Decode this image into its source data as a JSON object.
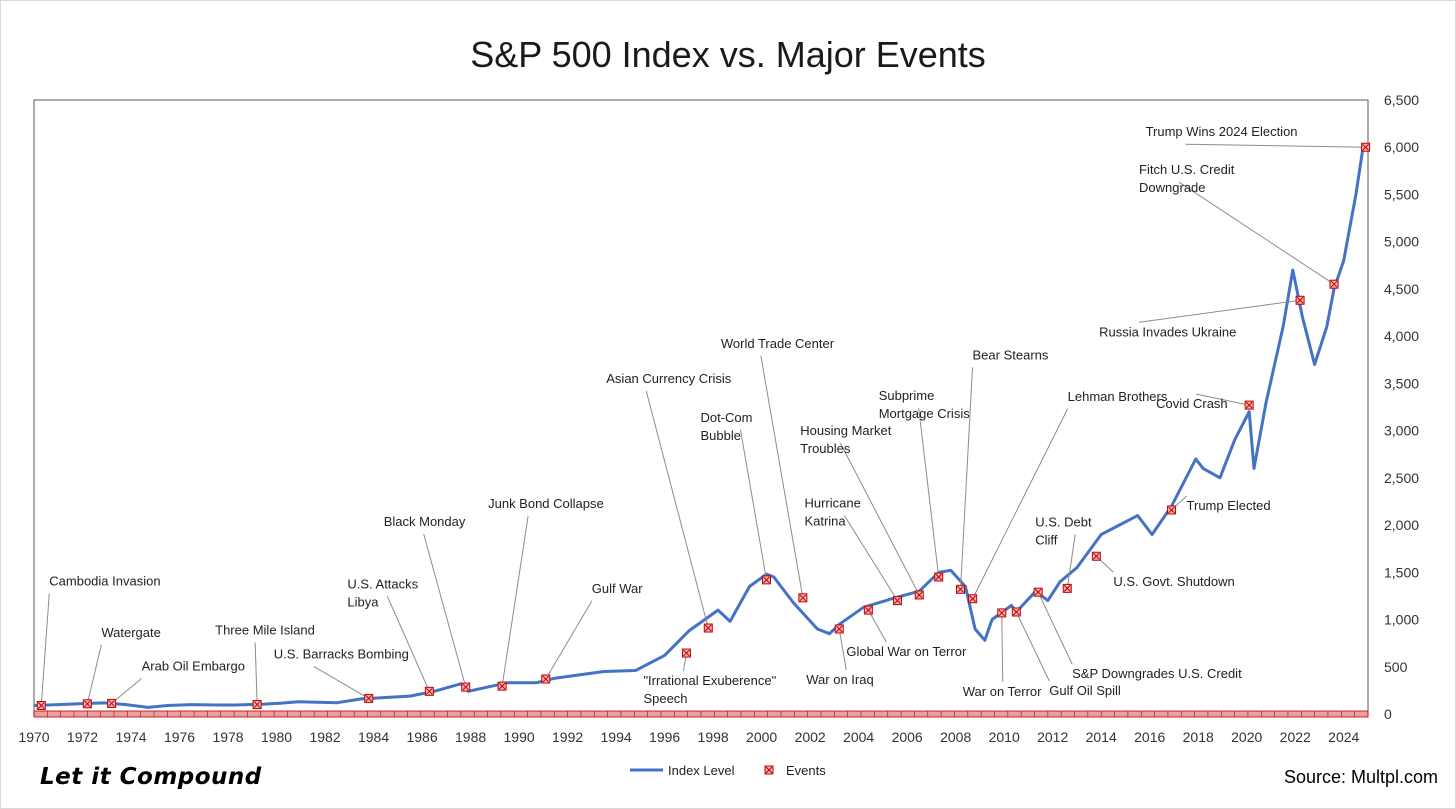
{
  "chart_data": {
    "type": "line",
    "title": "S&P 500 Index vs. Major Events",
    "xlabel": "",
    "ylabel": "",
    "xlim": [
      1970,
      2025
    ],
    "ylim": [
      0,
      6500
    ],
    "y_axis_position": "right",
    "x_ticks": [
      "1970",
      "1972",
      "1974",
      "1976",
      "1978",
      "1980",
      "1982",
      "1984",
      "1986",
      "1988",
      "1990",
      "1992",
      "1994",
      "1996",
      "1998",
      "2000",
      "2002",
      "2004",
      "2006",
      "2008",
      "2010",
      "2012",
      "2014",
      "2016",
      "2018",
      "2020",
      "2022",
      "2024"
    ],
    "y_ticks": [
      "0",
      "500",
      "1,000",
      "1,500",
      "2,000",
      "2,500",
      "3,000",
      "3,500",
      "4,000",
      "4,500",
      "5,000",
      "5,500",
      "6,000",
      "6,500"
    ],
    "grid": false,
    "legend_position": "bottom",
    "legend": [
      {
        "name": "Index Level",
        "color": "#4472c4",
        "marker": "line"
      },
      {
        "name": "Events",
        "color": "#c00000",
        "marker": "square-x"
      }
    ],
    "series": [
      {
        "name": "Index Level",
        "color": "#4472c4",
        "x": [
          1970,
          1971,
          1972,
          1972.9,
          1973.8,
          1974.7,
          1975.5,
          1976.5,
          1977.5,
          1978.3,
          1979.5,
          1980.2,
          1980.9,
          1982.5,
          1983.5,
          1985.5,
          1986.5,
          1987.6,
          1987.9,
          1989.5,
          1990.7,
          1991.5,
          1993.5,
          1994.8,
          1996,
          1997,
          1998.2,
          1998.7,
          1999.5,
          2000.2,
          2000.5,
          2001.3,
          2002.3,
          2002.8,
          2003.2,
          2004.2,
          2005.5,
          2006.5,
          2007.3,
          2007.8,
          2008.4,
          2008.8,
          2009.2,
          2009.5,
          2010.3,
          2010.5,
          2011.3,
          2011.8,
          2012.3,
          2013,
          2014,
          2015.5,
          2016.1,
          2016.9,
          2017.9,
          2018.2,
          2018.9,
          2019.5,
          2020.1,
          2020.3,
          2020.8,
          2021.5,
          2021.9,
          2022.3,
          2022.8,
          2023.3,
          2023.6,
          2024,
          2024.5,
          2024.8
        ],
        "y": [
          90,
          100,
          110,
          118,
          100,
          70,
          90,
          100,
          95,
          95,
          105,
          115,
          130,
          120,
          160,
          190,
          240,
          320,
          240,
          330,
          330,
          380,
          450,
          460,
          620,
          880,
          1100,
          980,
          1350,
          1480,
          1450,
          1180,
          900,
          850,
          950,
          1130,
          1230,
          1300,
          1500,
          1520,
          1350,
          900,
          780,
          1000,
          1150,
          1080,
          1300,
          1200,
          1400,
          1550,
          1900,
          2100,
          1900,
          2200,
          2700,
          2600,
          2500,
          2900,
          3200,
          2600,
          3300,
          4100,
          4700,
          4200,
          3700,
          4100,
          4500,
          4800,
          5500,
          6000
        ]
      }
    ],
    "events": [
      {
        "label": "Cambodia Invasion",
        "x": 1970.3,
        "y": 90
      },
      {
        "label": "Watergate",
        "x": 1972.2,
        "y": 108
      },
      {
        "label": "Arab Oil Embargo",
        "x": 1973.2,
        "y": 112
      },
      {
        "label": "Three Mile Island",
        "x": 1979.2,
        "y": 100
      },
      {
        "label": "U.S. Barracks Bombing",
        "x": 1983.8,
        "y": 165
      },
      {
        "label": "U.S. Attacks Libya",
        "x": 1986.3,
        "y": 240
      },
      {
        "label": "Black Monday",
        "x": 1987.8,
        "y": 285
      },
      {
        "label": "Junk Bond Collapse",
        "x": 1989.3,
        "y": 295
      },
      {
        "label": "Gulf War",
        "x": 1991.1,
        "y": 370
      },
      {
        "label": "\"Irrational Exuberence\" Speech",
        "x": 1996.9,
        "y": 645
      },
      {
        "label": "Asian Currency Crisis",
        "x": 1997.8,
        "y": 910
      },
      {
        "label": "Dot-Com Bubble",
        "x": 2000.2,
        "y": 1420
      },
      {
        "label": "World Trade Center",
        "x": 2001.7,
        "y": 1230
      },
      {
        "label": "War on Iraq",
        "x": 2003.2,
        "y": 900
      },
      {
        "label": "Global War on Terror",
        "x": 2004.4,
        "y": 1100
      },
      {
        "label": "Hurricane Katrina",
        "x": 2005.6,
        "y": 1200
      },
      {
        "label": "Housing Market Troubles",
        "x": 2006.5,
        "y": 1260
      },
      {
        "label": "Subprime Mortgage Crisis",
        "x": 2007.3,
        "y": 1450
      },
      {
        "label": "Bear Stearns",
        "x": 2008.2,
        "y": 1320
      },
      {
        "label": "Lehman Brothers",
        "x": 2008.7,
        "y": 1220
      },
      {
        "label": "War on Terror",
        "x": 2009.9,
        "y": 1070
      },
      {
        "label": "Gulf Oil Spill",
        "x": 2010.5,
        "y": 1080
      },
      {
        "label": "S&P Downgrades U.S. Credit",
        "x": 2011.4,
        "y": 1290
      },
      {
        "label": "U.S. Debt Cliff",
        "x": 2012.6,
        "y": 1330
      },
      {
        "label": "U.S. Govt. Shutdown",
        "x": 2013.8,
        "y": 1670
      },
      {
        "label": "Trump Elected",
        "x": 2016.9,
        "y": 2160
      },
      {
        "label": "Covid Crash",
        "x": 2020.1,
        "y": 3270
      },
      {
        "label": "Russia Invades Ukraine",
        "x": 2022.2,
        "y": 4380
      },
      {
        "label": "Fitch U.S. Credit Downgrade",
        "x": 2023.6,
        "y": 4550
      },
      {
        "label": "Trump Wins 2024 Election",
        "x": 2024.9,
        "y": 6000
      }
    ]
  },
  "footer": {
    "brand": "Let it Compound",
    "source": "Source: Multpl.com"
  }
}
